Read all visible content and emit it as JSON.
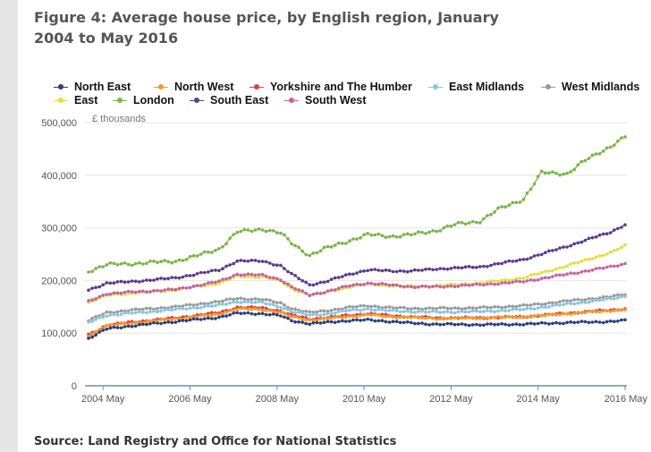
{
  "title": "Figure 4: Average house price, by English region, January 2004 to May 2016",
  "source": "Source: Land Registry and Office for National Statistics",
  "chart_data": {
    "type": "line",
    "title": "Figure 4: Average house price, by English region, January 2004 to May 2016",
    "ylabel": "£ thousands",
    "xlabel": "",
    "ylim": [
      0,
      500000
    ],
    "y_ticks": [
      "0",
      "100,000",
      "200,000",
      "300,000",
      "400,000",
      "500,000"
    ],
    "x_ticks": [
      "2004 May",
      "2006 May",
      "2008 May",
      "2010 May",
      "2012 May",
      "2014 May",
      "2016 May"
    ],
    "x_range": [
      "2004-01",
      "2016-05"
    ],
    "grid": "horizontal",
    "legend_position": "top",
    "series_order_back_to_front": [
      "London",
      "South East",
      "East",
      "South West",
      "West Midlands",
      "East Midlands",
      "Yorkshire and The Humber",
      "North West",
      "North East"
    ],
    "series": [
      {
        "name": "North East",
        "color": "#2a3f86",
        "points": [
          [
            "2004-01",
            90000
          ],
          [
            "2004-06",
            108000
          ],
          [
            "2005-01",
            114000
          ],
          [
            "2006-01",
            122000
          ],
          [
            "2007-01",
            130000
          ],
          [
            "2007-06",
            138000
          ],
          [
            "2008-01",
            137000
          ],
          [
            "2008-06",
            133000
          ],
          [
            "2008-09",
            124000
          ],
          [
            "2009-02",
            118000
          ],
          [
            "2009-06",
            120000
          ],
          [
            "2010-01",
            124000
          ],
          [
            "2010-06",
            125000
          ],
          [
            "2011-01",
            122000
          ],
          [
            "2011-06",
            119000
          ],
          [
            "2012-01",
            117000
          ],
          [
            "2013-01",
            116000
          ],
          [
            "2014-01",
            117000
          ],
          [
            "2015-01",
            120000
          ],
          [
            "2016-01",
            122000
          ],
          [
            "2016-05",
            124000
          ]
        ]
      },
      {
        "name": "North West",
        "color": "#f59a23",
        "points": [
          [
            "2004-01",
            95000
          ],
          [
            "2004-06",
            114000
          ],
          [
            "2005-01",
            119000
          ],
          [
            "2006-01",
            127000
          ],
          [
            "2007-01",
            136000
          ],
          [
            "2007-06",
            146000
          ],
          [
            "2008-01",
            145000
          ],
          [
            "2008-06",
            139000
          ],
          [
            "2008-09",
            131000
          ],
          [
            "2009-02",
            125000
          ],
          [
            "2009-06",
            127000
          ],
          [
            "2010-01",
            132000
          ],
          [
            "2010-06",
            135000
          ],
          [
            "2011-01",
            131000
          ],
          [
            "2011-06",
            130000
          ],
          [
            "2012-01",
            128000
          ],
          [
            "2013-01",
            129000
          ],
          [
            "2014-01",
            131000
          ],
          [
            "2015-01",
            137000
          ],
          [
            "2016-01",
            143000
          ],
          [
            "2016-05",
            145000
          ]
        ]
      },
      {
        "name": "Yorkshire and The Humber",
        "color": "#d94040",
        "points": [
          [
            "2004-01",
            97000
          ],
          [
            "2004-06",
            115000
          ],
          [
            "2005-01",
            121000
          ],
          [
            "2006-01",
            129000
          ],
          [
            "2007-01",
            139000
          ],
          [
            "2007-06",
            149000
          ],
          [
            "2008-01",
            148000
          ],
          [
            "2008-06",
            142000
          ],
          [
            "2008-09",
            134000
          ],
          [
            "2009-02",
            127000
          ],
          [
            "2009-06",
            129000
          ],
          [
            "2010-01",
            134000
          ],
          [
            "2010-06",
            137000
          ],
          [
            "2011-01",
            133000
          ],
          [
            "2011-06",
            131000
          ],
          [
            "2012-01",
            129000
          ],
          [
            "2013-01",
            129000
          ],
          [
            "2014-01",
            131000
          ],
          [
            "2015-01",
            138000
          ],
          [
            "2016-01",
            144000
          ],
          [
            "2016-05",
            146000
          ]
        ]
      },
      {
        "name": "East Midlands",
        "color": "#86c6e0",
        "points": [
          [
            "2004-01",
            120000
          ],
          [
            "2004-06",
            134000
          ],
          [
            "2005-01",
            138000
          ],
          [
            "2006-01",
            145000
          ],
          [
            "2007-01",
            153000
          ],
          [
            "2007-06",
            160000
          ],
          [
            "2008-01",
            158000
          ],
          [
            "2008-06",
            150000
          ],
          [
            "2008-09",
            141000
          ],
          [
            "2009-02",
            134000
          ],
          [
            "2009-06",
            136000
          ],
          [
            "2010-01",
            143000
          ],
          [
            "2010-06",
            146000
          ],
          [
            "2011-01",
            142000
          ],
          [
            "2011-06",
            141000
          ],
          [
            "2012-01",
            140000
          ],
          [
            "2013-01",
            141000
          ],
          [
            "2014-01",
            145000
          ],
          [
            "2015-01",
            155000
          ],
          [
            "2016-01",
            165000
          ],
          [
            "2016-05",
            170000
          ]
        ]
      },
      {
        "name": "West Midlands",
        "color": "#9b9b9b",
        "points": [
          [
            "2004-01",
            124000
          ],
          [
            "2004-06",
            139000
          ],
          [
            "2005-01",
            144000
          ],
          [
            "2006-01",
            150000
          ],
          [
            "2007-01",
            160000
          ],
          [
            "2007-06",
            166000
          ],
          [
            "2008-01",
            164000
          ],
          [
            "2008-06",
            157000
          ],
          [
            "2008-09",
            147000
          ],
          [
            "2009-02",
            139000
          ],
          [
            "2009-06",
            142000
          ],
          [
            "2010-01",
            149000
          ],
          [
            "2010-06",
            152000
          ],
          [
            "2011-01",
            148000
          ],
          [
            "2011-06",
            147000
          ],
          [
            "2012-01",
            147000
          ],
          [
            "2013-01",
            148000
          ],
          [
            "2014-01",
            152000
          ],
          [
            "2015-01",
            161000
          ],
          [
            "2016-01",
            169000
          ],
          [
            "2016-05",
            174000
          ]
        ]
      },
      {
        "name": "East",
        "color": "#e0e040",
        "points": [
          [
            "2004-01",
            158000
          ],
          [
            "2004-06",
            172000
          ],
          [
            "2005-01",
            176000
          ],
          [
            "2006-01",
            182000
          ],
          [
            "2007-01",
            195000
          ],
          [
            "2007-06",
            208000
          ],
          [
            "2008-01",
            207000
          ],
          [
            "2008-06",
            199000
          ],
          [
            "2008-09",
            185000
          ],
          [
            "2009-02",
            173000
          ],
          [
            "2009-06",
            177000
          ],
          [
            "2010-01",
            188000
          ],
          [
            "2010-06",
            193000
          ],
          [
            "2011-01",
            190000
          ],
          [
            "2011-06",
            189000
          ],
          [
            "2012-01",
            190000
          ],
          [
            "2013-01",
            195000
          ],
          [
            "2014-01",
            205000
          ],
          [
            "2015-01",
            228000
          ],
          [
            "2016-01",
            253000
          ],
          [
            "2016-05",
            266000
          ]
        ]
      },
      {
        "name": "London",
        "color": "#7ab648",
        "points": [
          [
            "2004-01",
            218000
          ],
          [
            "2004-06",
            230000
          ],
          [
            "2005-01",
            232000
          ],
          [
            "2006-01",
            237000
          ],
          [
            "2006-06",
            245000
          ],
          [
            "2007-01",
            260000
          ],
          [
            "2007-06",
            292000
          ],
          [
            "2008-01",
            298000
          ],
          [
            "2008-06",
            290000
          ],
          [
            "2008-09",
            271000
          ],
          [
            "2009-02",
            248000
          ],
          [
            "2009-06",
            260000
          ],
          [
            "2010-01",
            276000
          ],
          [
            "2010-06",
            287000
          ],
          [
            "2011-01",
            284000
          ],
          [
            "2011-06",
            287000
          ],
          [
            "2012-01",
            295000
          ],
          [
            "2012-06",
            306000
          ],
          [
            "2013-01",
            313000
          ],
          [
            "2013-06",
            335000
          ],
          [
            "2014-01",
            355000
          ],
          [
            "2014-06",
            405000
          ],
          [
            "2015-01",
            403000
          ],
          [
            "2015-06",
            428000
          ],
          [
            "2016-01",
            455000
          ],
          [
            "2016-05",
            473000
          ]
        ]
      },
      {
        "name": "South East",
        "color": "#5b3c8c",
        "points": [
          [
            "2004-01",
            182000
          ],
          [
            "2004-06",
            195000
          ],
          [
            "2005-01",
            198000
          ],
          [
            "2006-01",
            205000
          ],
          [
            "2007-01",
            220000
          ],
          [
            "2007-06",
            237000
          ],
          [
            "2008-01",
            237000
          ],
          [
            "2008-06",
            228000
          ],
          [
            "2008-09",
            212000
          ],
          [
            "2009-02",
            192000
          ],
          [
            "2009-06",
            197000
          ],
          [
            "2010-01",
            212000
          ],
          [
            "2010-06",
            220000
          ],
          [
            "2011-01",
            218000
          ],
          [
            "2011-06",
            218000
          ],
          [
            "2012-01",
            222000
          ],
          [
            "2013-01",
            226000
          ],
          [
            "2014-01",
            240000
          ],
          [
            "2015-01",
            265000
          ],
          [
            "2016-01",
            292000
          ],
          [
            "2016-05",
            306000
          ]
        ]
      },
      {
        "name": "South West",
        "color": "#c864a0",
        "points": [
          [
            "2004-01",
            160000
          ],
          [
            "2004-06",
            175000
          ],
          [
            "2005-01",
            178000
          ],
          [
            "2006-01",
            183000
          ],
          [
            "2007-01",
            198000
          ],
          [
            "2007-06",
            212000
          ],
          [
            "2008-01",
            210000
          ],
          [
            "2008-06",
            202000
          ],
          [
            "2008-09",
            188000
          ],
          [
            "2009-02",
            172000
          ],
          [
            "2009-06",
            178000
          ],
          [
            "2010-01",
            190000
          ],
          [
            "2010-06",
            195000
          ],
          [
            "2011-01",
            191000
          ],
          [
            "2011-06",
            188000
          ],
          [
            "2012-01",
            188000
          ],
          [
            "2013-01",
            192000
          ],
          [
            "2014-01",
            198000
          ],
          [
            "2015-01",
            212000
          ],
          [
            "2016-01",
            226000
          ],
          [
            "2016-05",
            232000
          ]
        ]
      }
    ]
  }
}
